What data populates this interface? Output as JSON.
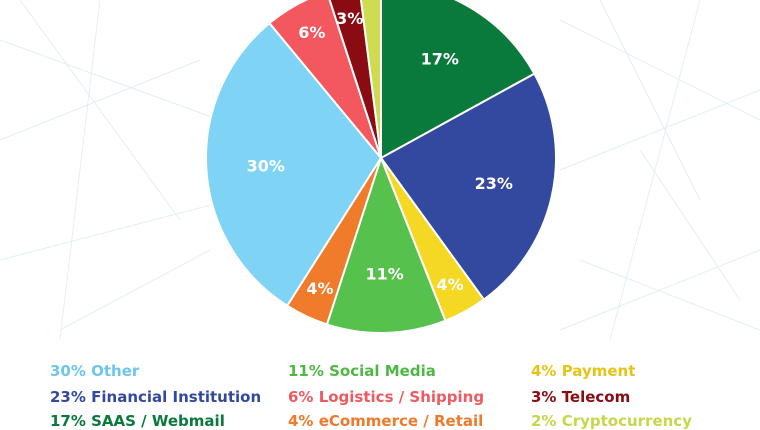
{
  "chart_data": {
    "type": "pie",
    "slices": [
      {
        "label": "Other",
        "value": 30,
        "display": "30%",
        "color": "#7fd3f5",
        "legend": "30% Other",
        "legend_color": "#6cc6ee"
      },
      {
        "label": "Logistics / Shipping",
        "value": 6,
        "display": "6%",
        "color": "#f4585f",
        "legend": "6% Logistics / Shipping",
        "legend_color": "#ef5a60"
      },
      {
        "label": "Telecom",
        "value": 3,
        "display": "3%",
        "color": "#8a0b12",
        "legend": "3% Telecom",
        "legend_color": "#8a0b12"
      },
      {
        "label": "Cryptocurrency",
        "value": 2,
        "display": "",
        "color": "#cfdc52",
        "legend": "2% Cryptocurrency",
        "legend_color": "#c8d64a"
      },
      {
        "label": "SAAS / Webmail",
        "value": 17,
        "display": "17%",
        "color": "#0a7a3c",
        "legend": "17% SAAS / Webmail",
        "legend_color": "#0a7a3c"
      },
      {
        "label": "Financial Institution",
        "value": 23,
        "display": "23%",
        "color": "#33489f",
        "legend": "23% Financial Institution",
        "legend_color": "#33489f"
      },
      {
        "label": "Payment",
        "value": 4,
        "display": "4%",
        "color": "#f5d824",
        "legend": "4% Payment",
        "legend_color": "#e6c417"
      },
      {
        "label": "Social Media",
        "value": 11,
        "display": "11%",
        "color": "#57c14e",
        "legend": "11% Social Media",
        "legend_color": "#4fb845"
      },
      {
        "label": "eCommerce / Retail",
        "value": 4,
        "display": "4%",
        "color": "#f07b2a",
        "legend": "4% eCommerce / Retail",
        "legend_color": "#ee7a2a"
      }
    ],
    "legend_order": [
      "Other",
      "Social Media",
      "Payment",
      "Financial Institution",
      "Logistics / Shipping",
      "Telecom",
      "SAAS / Webmail",
      "eCommerce / Retail",
      "Cryptocurrency"
    ],
    "legend_placement": "bottom"
  }
}
